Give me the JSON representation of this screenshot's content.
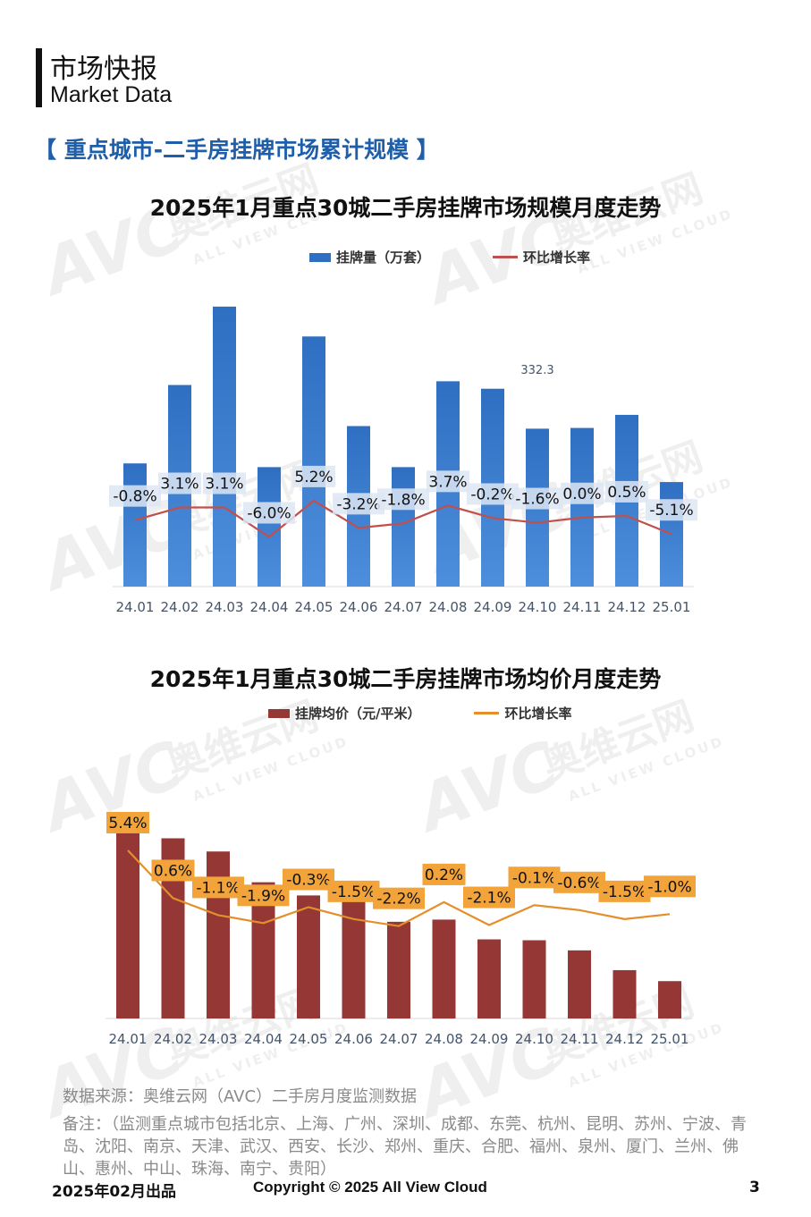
{
  "header": {
    "title": "市场快报",
    "subtitle": "Market Data"
  },
  "section_title": "【 重点城市-二手房挂牌市场累计规模 】",
  "chart_data": [
    {
      "type": "bar",
      "title": "2025年1月重点30城二手房挂牌市场规模月度走势",
      "categories": [
        "24.01",
        "24.02",
        "24.03",
        "24.04",
        "24.05",
        "24.06",
        "24.07",
        "24.08",
        "24.09",
        "24.10",
        "24.11",
        "24.12",
        "25.01"
      ],
      "series": [
        {
          "name": "挂牌量（万套）",
          "kind": "bar",
          "values": [
            323,
            344,
            365,
            322,
            357,
            333,
            322,
            345,
            343,
            332.3,
            332.5,
            336,
            318
          ],
          "color": "#2f6fc2"
        },
        {
          "name": "环比增长率",
          "kind": "line",
          "values": [
            -0.8,
            3.1,
            3.1,
            -6.0,
            5.2,
            -3.2,
            -1.8,
            3.7,
            -0.2,
            -1.6,
            0.0,
            0.5,
            -5.1
          ],
          "labels": [
            "-0.8%",
            "3.1%",
            "3.1%",
            "-6.0%",
            "5.2%",
            "-3.2%",
            "-1.8%",
            "3.7%",
            "-0.2%",
            "-1.6%",
            "0.0%",
            "0.5%",
            "-5.1%"
          ],
          "color": "#c0504d"
        }
      ],
      "annotation": "332.3",
      "ylim": [
        290,
        370
      ],
      "line_ylim": [
        -10,
        14
      ],
      "legend": "top"
    },
    {
      "type": "bar",
      "title": "2025年1月重点30城二手房挂牌市场均价月度走势",
      "categories": [
        "24.01",
        "24.02",
        "24.03",
        "24.04",
        "24.05",
        "24.06",
        "24.07",
        "24.08",
        "24.09",
        "24.10",
        "24.11",
        "24.12",
        "25.01"
      ],
      "series": [
        {
          "name": "挂牌均价（元/平米）",
          "kind": "bar",
          "values": [
            100,
            96,
            93,
            86,
            83,
            82,
            77,
            77.5,
            73,
            72.8,
            70.5,
            66,
            63.5
          ],
          "color": "#953735"
        },
        {
          "name": "环比增长率",
          "kind": "line",
          "values": [
            5.4,
            0.6,
            -1.1,
            -1.9,
            -0.3,
            -1.5,
            -2.2,
            0.2,
            -2.1,
            -0.1,
            -0.6,
            -1.5,
            -1.0
          ],
          "labels": [
            "5.4%",
            "0.6%",
            "-1.1%",
            "-1.9%",
            "-0.3%",
            "-1.5%",
            "-2.2%",
            "0.2%",
            "-2.1%",
            "-0.1%",
            "-0.6%",
            "-1.5%",
            "-1.0%"
          ],
          "color": "#e38f2a"
        }
      ],
      "ylim": [
        55,
        102
      ],
      "line_ylim": [
        -6,
        8
      ],
      "legend": "top"
    }
  ],
  "source": "数据来源：奥维云网（AVC）二手房月度监测数据",
  "note": "备注：（监测重点城市包括北京、上海、广州、深圳、成都、东莞、杭州、昆明、苏州、宁波、青岛、沈阳、南京、天津、武汉、西安、长沙、郑州、重庆、合肥、福州、泉州、厦门、兰州、佛山、惠州、中山、珠海、南宁、贵阳）",
  "footer": {
    "date": "2025年02月出品",
    "copyright": "Copyright © 2025  All View Cloud",
    "page": "3"
  },
  "watermark": {
    "brand": "AVC",
    "cn": "奥维云网",
    "en": "ALL VIEW CLOUD"
  }
}
